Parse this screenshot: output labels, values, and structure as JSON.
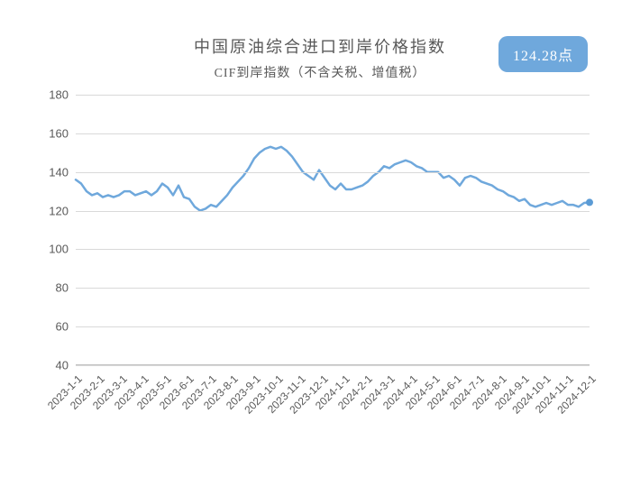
{
  "chart": {
    "type": "line",
    "title": "中国原油综合进口到岸价格指数",
    "subtitle": "CIF到岸指数（不含关税、增值税）",
    "badge_value": "124.28点",
    "title_fontsize": 18,
    "subtitle_fontsize": 14,
    "title_color": "#595959",
    "badge_bg": "#6fa8dc",
    "badge_fg": "#ffffff",
    "line_color": "#6fa8dc",
    "line_width": 2.5,
    "marker_color": "#5b9bd5",
    "marker_radius": 4,
    "grid_color": "#d9d9d9",
    "background_color": "#ffffff",
    "ylim": [
      40,
      180
    ],
    "ytick_step": 20,
    "yticks": [
      40,
      60,
      80,
      100,
      120,
      140,
      160,
      180
    ],
    "x_labels": [
      "2023-1-1",
      "2023-2-1",
      "2023-3-1",
      "2023-4-1",
      "2023-5-1",
      "2023-6-1",
      "2023-7-1",
      "2023-8-1",
      "2023-9-1",
      "2023-10-1",
      "2023-11-1",
      "2023-12-1",
      "2024-1-1",
      "2024-2-1",
      "2024-3-1",
      "2024-4-1",
      "2024-5-1",
      "2024-6-1",
      "2024-7-1",
      "2024-8-1",
      "2024-9-1",
      "2024-10-1",
      "2024-11-1",
      "2024-12-1"
    ],
    "x_label_rotation": -45,
    "x_label_fontsize": 12,
    "y_label_fontsize": 13,
    "values": [
      136,
      134,
      130,
      128,
      129,
      127,
      128,
      127,
      128,
      130,
      130,
      128,
      129,
      130,
      128,
      130,
      134,
      132,
      128,
      133,
      127,
      126,
      122,
      120,
      121,
      123,
      122,
      125,
      128,
      132,
      135,
      138,
      142,
      147,
      150,
      152,
      153,
      152,
      153,
      151,
      148,
      144,
      140,
      138,
      136,
      141,
      137,
      133,
      131,
      134,
      131,
      131,
      132,
      133,
      135,
      138,
      140,
      143,
      142,
      144,
      145,
      146,
      145,
      143,
      142,
      140,
      140,
      140,
      137,
      138,
      136,
      133,
      137,
      138,
      137,
      135,
      134,
      133,
      131,
      130,
      128,
      127,
      125,
      126,
      123,
      122,
      123,
      124,
      123,
      124,
      125,
      123,
      123,
      122,
      124,
      124.28
    ],
    "last_point_marker": true
  }
}
